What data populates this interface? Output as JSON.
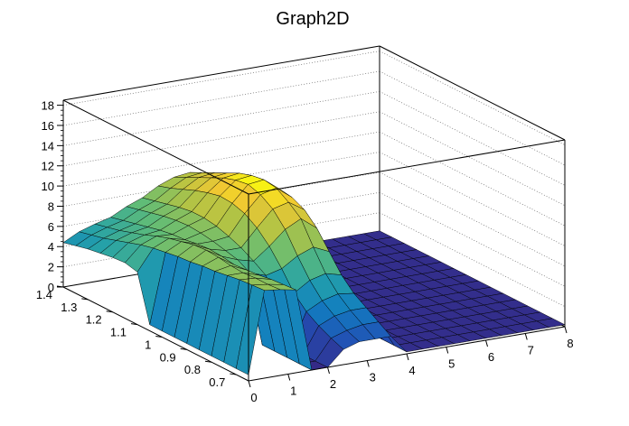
{
  "chart_data": {
    "type": "surface",
    "title": "Graph2D",
    "xlabel": "",
    "ylabel": "",
    "zlabel": "",
    "xlim": [
      0,
      8
    ],
    "ylim": [
      0.65,
      1.4
    ],
    "zlim": [
      0,
      18.5
    ],
    "x_ticks": [
      "0",
      "1",
      "2",
      "3",
      "4",
      "5",
      "6",
      "7",
      "8"
    ],
    "y_ticks": [
      "0.7",
      "0.8",
      "0.9",
      "1",
      "1.1",
      "1.2",
      "1.3",
      "1.4"
    ],
    "z_ticks": [
      "0",
      "2",
      "4",
      "6",
      "8",
      "10",
      "12",
      "14",
      "16",
      "18"
    ],
    "grid": true,
    "colormap": "viridis-like (dark blue → teal → green → yellow)",
    "surface_grid_x": [
      0.0,
      0.4,
      0.8,
      1.2,
      1.6,
      2.0,
      2.4,
      2.8,
      3.2,
      3.6,
      4.0,
      4.4,
      4.8,
      5.2,
      5.6,
      6.0,
      6.4,
      6.8,
      7.2,
      7.6,
      8.0
    ],
    "surface_grid_y": [
      0.65,
      0.7,
      0.75,
      0.8,
      0.85,
      0.9,
      0.95,
      1.0,
      1.05,
      1.1,
      1.15,
      1.2,
      1.25,
      1.3,
      1.35,
      1.4
    ],
    "z": [
      [
        0.6,
        8.7,
        8.5,
        8.2,
        0.0,
        0.0,
        1.5,
        2.0,
        2.0,
        2.0,
        0.2,
        0.2,
        0.2,
        0.2,
        0.2,
        0.2,
        0.2,
        0.2,
        0.2,
        0.2,
        0.2
      ],
      [
        0.6,
        8.6,
        8.4,
        8.1,
        0.0,
        0.0,
        2.0,
        2.5,
        2.8,
        2.8,
        0.2,
        0.2,
        0.2,
        0.2,
        0.2,
        0.2,
        0.2,
        0.2,
        0.2,
        0.2,
        0.2
      ],
      [
        0.6,
        8.5,
        8.4,
        8.0,
        0.0,
        0.0,
        2.6,
        3.3,
        3.6,
        3.6,
        0.2,
        0.2,
        0.2,
        0.2,
        0.2,
        0.2,
        0.2,
        0.2,
        0.2,
        0.2,
        0.2
      ],
      [
        0.6,
        8.3,
        8.3,
        7.8,
        0.0,
        0.0,
        3.4,
        4.2,
        4.6,
        4.4,
        0.2,
        0.2,
        0.2,
        0.2,
        0.2,
        0.2,
        0.2,
        0.2,
        0.2,
        0.2,
        0.2
      ],
      [
        0.6,
        8.1,
        8.4,
        7.7,
        0.0,
        3.8,
        4.6,
        5.6,
        6.0,
        5.6,
        0.2,
        0.2,
        0.2,
        0.2,
        0.2,
        0.2,
        0.2,
        0.2,
        0.2,
        0.2,
        0.2
      ],
      [
        0.6,
        8.0,
        8.6,
        7.6,
        6.5,
        6.0,
        6.4,
        7.4,
        8.0,
        7.3,
        0.2,
        0.2,
        0.2,
        0.2,
        0.2,
        0.2,
        0.2,
        0.2,
        0.2,
        0.2,
        0.2
      ],
      [
        0.6,
        7.8,
        8.7,
        7.8,
        7.2,
        6.8,
        8.0,
        9.4,
        10.2,
        9.0,
        0.2,
        0.2,
        0.2,
        0.2,
        0.2,
        0.2,
        0.2,
        0.2,
        0.2,
        0.2,
        0.2
      ],
      [
        0.6,
        7.7,
        8.6,
        7.9,
        7.5,
        7.5,
        9.2,
        10.8,
        11.2,
        10.2,
        0.2,
        0.2,
        0.2,
        0.2,
        0.2,
        0.2,
        0.2,
        0.2,
        0.2,
        0.2,
        0.2
      ],
      [
        0.6,
        7.5,
        8.3,
        7.8,
        7.8,
        8.0,
        10.0,
        11.6,
        12.0,
        10.8,
        0.2,
        0.2,
        0.2,
        0.2,
        0.2,
        0.2,
        0.2,
        0.2,
        0.2,
        0.2,
        0.2
      ],
      [
        5.2,
        7.3,
        8.0,
        7.6,
        8.0,
        8.4,
        10.4,
        12.0,
        12.2,
        11.0,
        0.2,
        0.2,
        0.2,
        0.2,
        0.2,
        0.2,
        0.2,
        0.2,
        0.2,
        0.2,
        0.2
      ],
      [
        5.5,
        7.0,
        7.6,
        7.5,
        8.1,
        8.6,
        10.5,
        11.8,
        12.0,
        10.8,
        0.2,
        0.2,
        0.2,
        0.2,
        0.2,
        0.2,
        0.2,
        0.2,
        0.2,
        0.2,
        0.2
      ],
      [
        5.4,
        6.6,
        7.1,
        7.3,
        8.0,
        8.6,
        10.2,
        11.4,
        11.6,
        10.4,
        0.2,
        0.2,
        0.2,
        0.2,
        0.2,
        0.2,
        0.2,
        0.2,
        0.2,
        0.2,
        0.2
      ],
      [
        5.2,
        6.2,
        6.7,
        7.0,
        7.8,
        8.4,
        9.8,
        10.8,
        11.0,
        10.0,
        0.2,
        0.2,
        0.2,
        0.2,
        0.2,
        0.2,
        0.2,
        0.2,
        0.2,
        0.2,
        0.2
      ],
      [
        5.0,
        5.8,
        6.3,
        6.7,
        7.5,
        8.1,
        9.3,
        10.2,
        10.4,
        9.6,
        0.2,
        0.2,
        0.2,
        0.2,
        0.2,
        0.2,
        0.2,
        0.2,
        0.2,
        0.2,
        0.2
      ],
      [
        4.7,
        5.5,
        6.0,
        6.4,
        7.2,
        7.8,
        8.8,
        9.6,
        9.8,
        9.1,
        0.2,
        0.2,
        0.2,
        0.2,
        0.2,
        0.2,
        0.2,
        0.2,
        0.2,
        0.2,
        0.2
      ],
      [
        4.4,
        5.2,
        5.7,
        6.1,
        6.9,
        7.5,
        8.4,
        9.0,
        9.2,
        8.6,
        0.2,
        0.2,
        0.2,
        0.2,
        0.2,
        0.2,
        0.2,
        0.2,
        0.2,
        0.2,
        0.2
      ]
    ]
  }
}
